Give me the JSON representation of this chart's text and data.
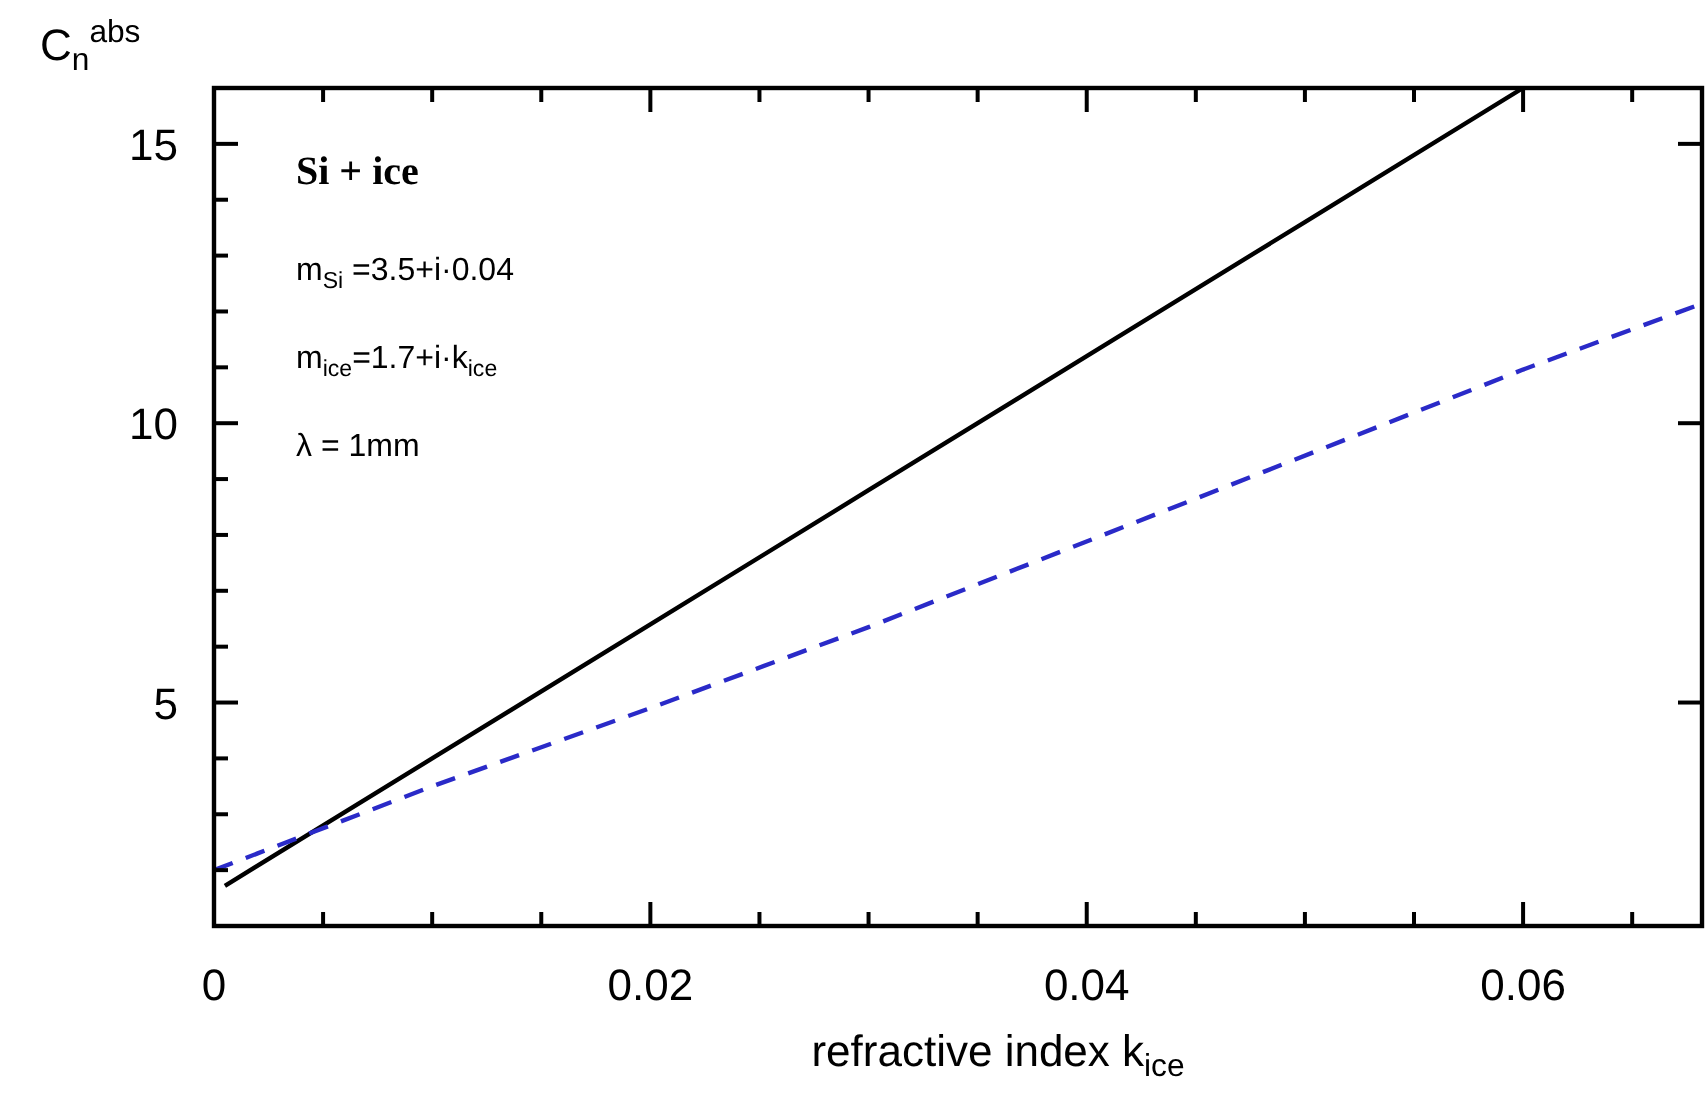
{
  "chart_data": {
    "type": "line",
    "xlabel": "refractive index k$_{ice}$",
    "ylabel": "C$_{n}$$^{abs}$",
    "annotations": [
      "Si + ice",
      "m$_{Si}$ =3.5+i·0.04",
      "m$_{ice}$=1.7+i·k$_{ice}$",
      "λ = 1mm"
    ],
    "series": [
      {
        "color": "#000000",
        "line_style": "solid",
        "x": [
          0.0005,
          0.01,
          0.02,
          0.03,
          0.04,
          0.05,
          0.06
        ],
        "values": [
          1.72,
          4.0,
          6.4,
          8.8,
          11.2,
          13.6,
          16.0
        ]
      },
      {
        "color": "#2a2ac8",
        "line_style": "dashed",
        "x": [
          0,
          0.002,
          0.01,
          0.02,
          0.03,
          0.045,
          0.06,
          0.0682
        ],
        "values": [
          2.0,
          2.3,
          3.5,
          4.9,
          6.35,
          8.65,
          10.96,
          12.14
        ]
      }
    ],
    "xlim": [
      0,
      0.0682
    ],
    "ylim": [
      1,
      16
    ],
    "xticks": [
      0,
      {
        "value": 0.005,
        "label": null
      },
      {
        "value": 0.01,
        "label": null
      },
      {
        "value": 0.015,
        "label": null
      },
      {
        "value": 0.02,
        "label": "0.02"
      },
      {
        "value": 0.025,
        "label": null
      },
      {
        "value": 0.03,
        "label": null
      },
      {
        "value": 0.035,
        "label": null
      },
      {
        "value": 0.04,
        "label": "0.04"
      },
      {
        "value": 0.045,
        "label": null
      },
      {
        "value": 0.05,
        "label": null
      },
      {
        "value": 0.055,
        "label": null
      },
      {
        "value": 0.06,
        "label": "0.06"
      },
      {
        "value": 0.065,
        "label": null
      }
    ],
    "yticks": [
      {
        "value": 2,
        "label": null
      },
      {
        "value": 3,
        "label": null
      },
      {
        "value": 4,
        "label": null
      },
      5,
      {
        "value": 6,
        "label": null
      },
      {
        "value": 7,
        "label": null
      },
      {
        "value": 8,
        "label": null
      },
      {
        "value": 9,
        "label": null
      },
      10,
      {
        "value": 11,
        "label": null
      },
      {
        "value": 12,
        "label": null
      },
      {
        "value": 13,
        "label": null
      },
      {
        "value": 14,
        "label": null
      },
      15
    ],
    "grid": false
  }
}
